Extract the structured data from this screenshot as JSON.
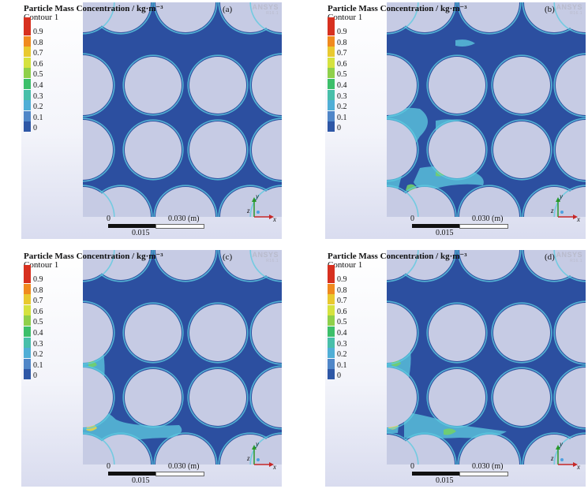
{
  "panels": [
    {
      "label": "(a)",
      "title": "Particle Mass Concentration / kg·m⁻³",
      "subtitle": "Contour 1"
    },
    {
      "label": "(b)",
      "title": "Particle Mass Concentration / kg·m⁻³",
      "subtitle": "Contour 1"
    },
    {
      "label": "(c)",
      "title": "Particle Mass Concentration / kg·m⁻³",
      "subtitle": "Contour 1"
    },
    {
      "label": "(d)",
      "title": "Particle Mass Concentration / kg·m⁻³",
      "subtitle": "Contour 1"
    }
  ],
  "legend": {
    "levels": [
      "0.9",
      "0.8",
      "0.7",
      "0.6",
      "0.5",
      "0.4",
      "0.3",
      "0.2",
      "0.1",
      "0"
    ],
    "colors": [
      "#d7301f",
      "#f08a1f",
      "#e9c92f",
      "#d5e23f",
      "#8fd04a",
      "#3cbf6a",
      "#48bfaa",
      "#50aed6",
      "#4f86c8",
      "#2e57a6"
    ]
  },
  "scale": {
    "zero": "0",
    "end": "0.030 (m)",
    "mid": "0.015"
  },
  "axes": {
    "y": "y",
    "z": "z",
    "x": "x"
  },
  "brand": {
    "name": "ANSYS",
    "version": "R16.1"
  },
  "colors": {
    "domain": "#2c4fa0",
    "hole": "#c6cbe4",
    "cyan": "#5ecbe0",
    "green": "#72cf6a",
    "yellow": "#e3d548"
  }
}
